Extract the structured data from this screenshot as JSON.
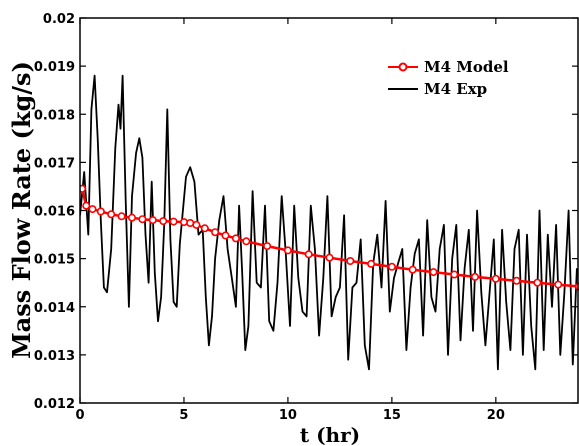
{
  "chart_data": {
    "type": "line",
    "title": "",
    "xlabel": "t (hr)",
    "ylabel": "Mass Flow Rate (kg/s)",
    "xlim": [
      0,
      24
    ],
    "ylim": [
      0.012,
      0.02
    ],
    "xticks": [
      0,
      5,
      10,
      15,
      20
    ],
    "xtick_labels": [
      "0",
      "5",
      "10",
      "15",
      "20"
    ],
    "yticks": [
      0.012,
      0.013,
      0.014,
      0.015,
      0.016,
      0.017,
      0.018,
      0.019,
      0.02
    ],
    "ytick_labels": [
      "0.012",
      "0.013",
      "0.014",
      "0.015",
      "0.016",
      "0.017",
      "0.018",
      "0.019",
      "0.02"
    ],
    "grid": false,
    "legend_position": "top-right",
    "series": [
      {
        "name": "M4 Model",
        "color": "#ff0000",
        "marker": "circle",
        "x": [
          0.1,
          0.3,
          0.6,
          1.0,
          1.5,
          2.0,
          2.5,
          3.0,
          3.5,
          4.0,
          4.5,
          5.0,
          5.3,
          5.6,
          6.0,
          6.5,
          7.0,
          7.5,
          8.0,
          9.0,
          10.0,
          11.0,
          12.0,
          13.0,
          14.0,
          15.0,
          16.0,
          17.0,
          18.0,
          19.0,
          20.0,
          21.0,
          22.0,
          23.0,
          24.0
        ],
        "y": [
          0.01645,
          0.0161,
          0.01603,
          0.01598,
          0.01592,
          0.01588,
          0.01585,
          0.01582,
          0.0158,
          0.01578,
          0.01577,
          0.01576,
          0.01574,
          0.0157,
          0.01563,
          0.01555,
          0.01548,
          0.01542,
          0.01536,
          0.01526,
          0.01517,
          0.01509,
          0.01502,
          0.01495,
          0.01489,
          0.01483,
          0.01477,
          0.01472,
          0.01467,
          0.01462,
          0.01458,
          0.01454,
          0.0145,
          0.01446,
          0.01442
        ]
      },
      {
        "name": "M4 Exp",
        "color": "#000000",
        "marker": "none",
        "x": [
          0.0,
          0.2,
          0.4,
          0.55,
          0.7,
          0.85,
          1.0,
          1.15,
          1.3,
          1.5,
          1.7,
          1.85,
          1.95,
          2.05,
          2.2,
          2.35,
          2.5,
          2.7,
          2.85,
          3.0,
          3.15,
          3.3,
          3.45,
          3.6,
          3.75,
          3.9,
          4.05,
          4.2,
          4.35,
          4.5,
          4.65,
          4.8,
          4.95,
          5.1,
          5.3,
          5.5,
          5.7,
          5.9,
          6.05,
          6.2,
          6.35,
          6.5,
          6.7,
          6.9,
          7.1,
          7.3,
          7.5,
          7.65,
          7.8,
          7.95,
          8.1,
          8.3,
          8.5,
          8.7,
          8.9,
          9.1,
          9.3,
          9.5,
          9.7,
          9.9,
          10.1,
          10.3,
          10.5,
          10.7,
          10.9,
          11.1,
          11.3,
          11.5,
          11.7,
          11.9,
          12.1,
          12.3,
          12.5,
          12.7,
          12.9,
          13.1,
          13.3,
          13.5,
          13.7,
          13.9,
          14.1,
          14.3,
          14.5,
          14.7,
          14.9,
          15.1,
          15.3,
          15.5,
          15.7,
          15.9,
          16.1,
          16.3,
          16.5,
          16.7,
          16.9,
          17.1,
          17.3,
          17.5,
          17.7,
          17.9,
          18.1,
          18.3,
          18.5,
          18.7,
          18.9,
          19.1,
          19.3,
          19.5,
          19.7,
          19.9,
          20.1,
          20.3,
          20.5,
          20.7,
          20.9,
          21.1,
          21.3,
          21.5,
          21.7,
          21.9,
          22.1,
          22.3,
          22.5,
          22.7,
          22.9,
          23.1,
          23.3,
          23.5,
          23.7,
          23.9
        ],
        "y": [
          0.0159,
          0.0168,
          0.0155,
          0.0181,
          0.0188,
          0.0175,
          0.0158,
          0.0144,
          0.0143,
          0.0152,
          0.0173,
          0.0182,
          0.0177,
          0.0188,
          0.0162,
          0.014,
          0.0163,
          0.0172,
          0.0175,
          0.0171,
          0.0155,
          0.0145,
          0.0166,
          0.0147,
          0.0137,
          0.0142,
          0.0157,
          0.0181,
          0.0154,
          0.0141,
          0.014,
          0.0153,
          0.016,
          0.0167,
          0.0169,
          0.0166,
          0.0155,
          0.0156,
          0.0142,
          0.0132,
          0.0138,
          0.015,
          0.0158,
          0.0163,
          0.0152,
          0.0146,
          0.014,
          0.0161,
          0.0147,
          0.0131,
          0.0136,
          0.0164,
          0.0145,
          0.0144,
          0.0161,
          0.0137,
          0.0135,
          0.0145,
          0.0163,
          0.0151,
          0.0136,
          0.0161,
          0.0146,
          0.0139,
          0.0138,
          0.0161,
          0.0152,
          0.0134,
          0.0146,
          0.0163,
          0.0138,
          0.0142,
          0.0144,
          0.0159,
          0.0129,
          0.0144,
          0.0145,
          0.0154,
          0.0132,
          0.0127,
          0.0149,
          0.0155,
          0.0144,
          0.0162,
          0.0139,
          0.0146,
          0.0149,
          0.0152,
          0.0131,
          0.0144,
          0.0151,
          0.0154,
          0.0134,
          0.0158,
          0.0142,
          0.0139,
          0.0152,
          0.0157,
          0.013,
          0.015,
          0.0157,
          0.0133,
          0.0148,
          0.0156,
          0.0135,
          0.016,
          0.0143,
          0.0132,
          0.0143,
          0.0154,
          0.0127,
          0.0156,
          0.0141,
          0.0131,
          0.0152,
          0.0156,
          0.013,
          0.0155,
          0.0136,
          0.0127,
          0.016,
          0.0131,
          0.0155,
          0.014,
          0.0157,
          0.013,
          0.0143,
          0.016,
          0.0128,
          0.0148
        ]
      }
    ]
  }
}
